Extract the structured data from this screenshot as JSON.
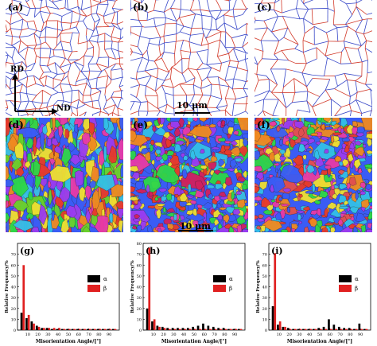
{
  "boundary_panels": [
    {
      "label": "(a)"
    },
    {
      "label": "(b)"
    },
    {
      "label": "(c)"
    }
  ],
  "orientation_panels": [
    {
      "label": "(d)"
    },
    {
      "label": "(e)"
    },
    {
      "label": "(f)"
    }
  ],
  "axes_labels": {
    "rd": "RD",
    "nd": "ND"
  },
  "scalebars": {
    "boundary": "10 μm",
    "orientation": "10 μm"
  },
  "chart_data": [
    {
      "type": "bar",
      "panel": "(g)",
      "categories": [
        5,
        10,
        15,
        20,
        25,
        30,
        35,
        40,
        45,
        50,
        55,
        60,
        65,
        70,
        75,
        80,
        85,
        90,
        95
      ],
      "series": [
        {
          "name": "α",
          "color": "#000000",
          "values": [
            16,
            11,
            8,
            4,
            2,
            2,
            1,
            1,
            1,
            1,
            1,
            1,
            1,
            1,
            1,
            1,
            1,
            1,
            1
          ]
        },
        {
          "name": "β",
          "color": "#e02020",
          "values": [
            60,
            14,
            6,
            3,
            2,
            2,
            2,
            2,
            1,
            1,
            1,
            1,
            1,
            1,
            1,
            1,
            1,
            1,
            1
          ]
        }
      ],
      "ylabel": "Relative Frequency/%",
      "xlabel": "Misorientation Angle/[°]",
      "ylim": [
        0,
        80
      ],
      "yticks": [
        0,
        10,
        20,
        30,
        40,
        50,
        60,
        70
      ],
      "xticks": [
        10,
        20,
        30,
        40,
        50,
        60,
        70,
        80,
        90
      ]
    },
    {
      "type": "bar",
      "panel": "(h)",
      "categories": [
        5,
        10,
        15,
        20,
        25,
        30,
        35,
        40,
        45,
        50,
        55,
        60,
        65,
        70,
        75,
        80,
        85,
        90,
        95
      ],
      "series": [
        {
          "name": "α",
          "color": "#000000",
          "values": [
            20,
            8,
            4,
            3,
            2,
            2,
            2,
            2,
            2,
            3,
            4,
            6,
            4,
            3,
            2,
            2,
            1,
            1,
            1
          ]
        },
        {
          "name": "β",
          "color": "#e02020",
          "values": [
            76,
            10,
            3,
            2,
            1,
            1,
            1,
            1,
            1,
            1,
            1,
            1,
            1,
            1,
            1,
            1,
            1,
            1,
            1
          ]
        }
      ],
      "ylabel": "Relative Frequency/%",
      "xlabel": "Misorientation Angle/[°]",
      "ylim": [
        0,
        80
      ],
      "yticks": [
        0,
        10,
        20,
        30,
        40,
        50,
        60,
        70,
        80
      ],
      "xticks": [
        10,
        20,
        30,
        40,
        50,
        60,
        70,
        80,
        90
      ]
    },
    {
      "type": "bar",
      "panel": "(i)",
      "categories": [
        5,
        10,
        15,
        20,
        25,
        30,
        35,
        40,
        45,
        50,
        55,
        60,
        65,
        70,
        75,
        80,
        85,
        90,
        95
      ],
      "series": [
        {
          "name": "α",
          "color": "#000000",
          "values": [
            22,
            5,
            3,
            2,
            1,
            1,
            1,
            1,
            1,
            2,
            3,
            10,
            5,
            3,
            2,
            2,
            1,
            6,
            1
          ]
        },
        {
          "name": "β",
          "color": "#e02020",
          "values": [
            71,
            8,
            3,
            1,
            1,
            1,
            1,
            1,
            1,
            1,
            1,
            1,
            1,
            1,
            1,
            1,
            1,
            1,
            1
          ]
        }
      ],
      "ylabel": "Relative Frequency/%",
      "xlabel": "Misorientation Angle/[°]",
      "ylim": [
        0,
        80
      ],
      "yticks": [
        0,
        10,
        20,
        30,
        40,
        50,
        60,
        70
      ],
      "xticks": [
        10,
        20,
        30,
        40,
        50,
        60,
        70,
        80,
        90
      ]
    }
  ]
}
